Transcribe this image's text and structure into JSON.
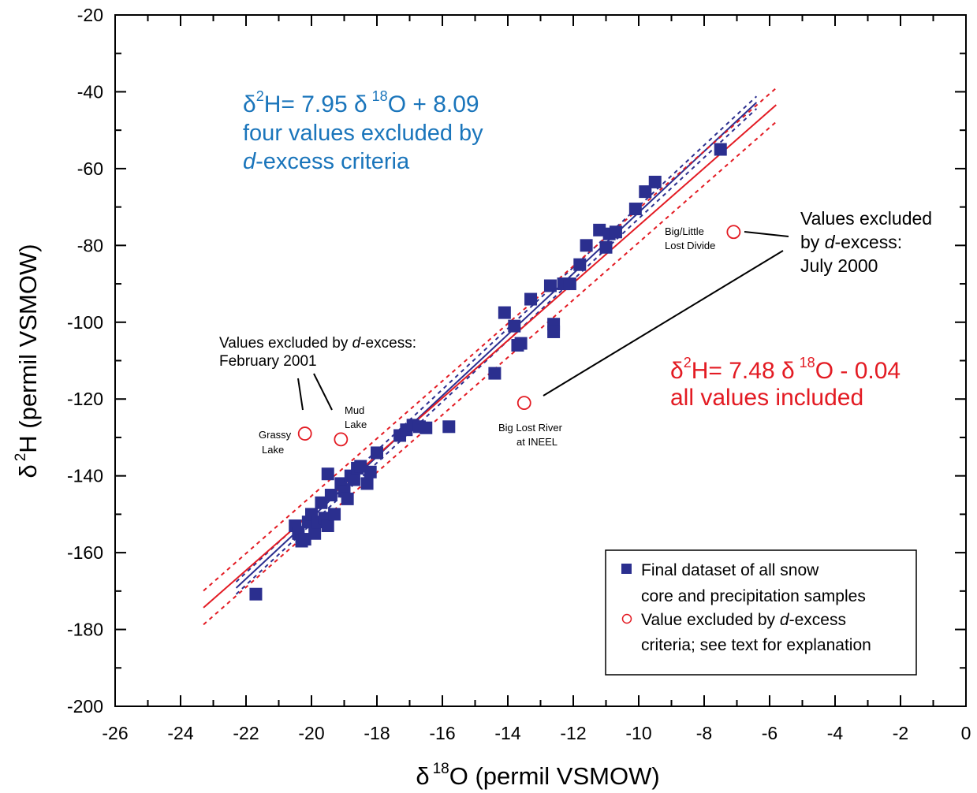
{
  "chart_data": {
    "type": "scatter",
    "xlabel": "δ 18O (permil VSMOW)",
    "ylabel": "δ 2H (permil VSMOW)",
    "axis_label_parts": {
      "x_delta": "δ",
      "x_sup": "18",
      "x_rest": "O (permil VSMOW)",
      "y_delta": "δ",
      "y_sup": "2",
      "y_rest": "H (permil VSMOW)"
    },
    "xlim": [
      -26,
      0
    ],
    "ylim": [
      -200,
      -20
    ],
    "x_ticks": [
      "-26",
      "-24",
      "-22",
      "-20",
      "-18",
      "-16",
      "-14",
      "-12",
      "-10",
      "-8",
      "-6",
      "-4",
      "-2",
      "0"
    ],
    "y_ticks": [
      "-20",
      "-40",
      "-60",
      "-80",
      "-100",
      "-120",
      "-140",
      "-160",
      "-180",
      "-200"
    ],
    "grid": false,
    "legend_position": "bottom-right",
    "colors": {
      "dataset": "#2b2f8f",
      "excluded": "#e31b23",
      "blue_text": "#1a75bb",
      "red_text": "#e31b23"
    },
    "series": [
      {
        "name": "Final dataset of all snow core and precipitation samples",
        "marker": "filled-square",
        "points": [
          [
            -21.7,
            -170.8
          ],
          [
            -20.5,
            -153
          ],
          [
            -20.4,
            -155
          ],
          [
            -20.3,
            -157
          ],
          [
            -20.2,
            -156.5
          ],
          [
            -20.1,
            -152
          ],
          [
            -20.0,
            -150
          ],
          [
            -19.9,
            -155
          ],
          [
            -19.8,
            -152
          ],
          [
            -19.7,
            -147
          ],
          [
            -19.6,
            -151
          ],
          [
            -19.5,
            -153
          ],
          [
            -19.4,
            -145
          ],
          [
            -19.3,
            -150
          ],
          [
            -19.5,
            -139.5
          ],
          [
            -19.1,
            -142
          ],
          [
            -19.0,
            -144
          ],
          [
            -18.9,
            -146
          ],
          [
            -18.8,
            -140
          ],
          [
            -18.7,
            -141
          ],
          [
            -18.6,
            -138
          ],
          [
            -18.5,
            -137.5
          ],
          [
            -18.3,
            -142
          ],
          [
            -18.2,
            -139
          ],
          [
            -18.0,
            -134
          ],
          [
            -17.3,
            -129.5
          ],
          [
            -17.1,
            -128
          ],
          [
            -16.9,
            -126.8
          ],
          [
            -16.7,
            -127.2
          ],
          [
            -16.5,
            -127.5
          ],
          [
            -15.8,
            -127.2
          ],
          [
            -14.4,
            -113.3
          ],
          [
            -14.1,
            -97.5
          ],
          [
            -13.8,
            -101
          ],
          [
            -13.7,
            -106
          ],
          [
            -13.6,
            -105.5
          ],
          [
            -13.3,
            -94
          ],
          [
            -12.7,
            -90.5
          ],
          [
            -12.6,
            -100.5
          ],
          [
            -12.6,
            -102.5
          ],
          [
            -12.3,
            -90
          ],
          [
            -12.1,
            -90
          ],
          [
            -11.8,
            -85
          ],
          [
            -11.6,
            -80
          ],
          [
            -11.2,
            -76
          ],
          [
            -11.0,
            -80.5
          ],
          [
            -10.9,
            -77
          ],
          [
            -10.7,
            -76.5
          ],
          [
            -10.1,
            -70.5
          ],
          [
            -9.8,
            -66
          ],
          [
            -9.5,
            -63.5
          ],
          [
            -7.5,
            -55
          ]
        ]
      },
      {
        "name": "Value excluded by d-excess criteria; see text for explanation",
        "marker": "open-circle",
        "points": [
          [
            -20.2,
            -129
          ],
          [
            -19.1,
            -130.5
          ],
          [
            -13.5,
            -121
          ],
          [
            -7.1,
            -76.5
          ]
        ]
      }
    ],
    "fits": [
      {
        "label": "blue",
        "slope": 7.95,
        "intercept": 8.09,
        "x_range": [
          -22.3,
          -6.4
        ],
        "band": 1.6
      },
      {
        "label": "red",
        "slope": 7.48,
        "intercept": -0.04,
        "x_range": [
          -23.3,
          -5.8
        ],
        "band": 4.4
      }
    ],
    "annotations": {
      "blue_eq_d": "δ",
      "blue_eq_sup1": "2",
      "blue_eq_mid": "H= 7.95 ",
      "blue_eq_d2": "δ",
      "blue_eq_sup2": "18",
      "blue_eq_end": "O + 8.09",
      "blue_line2": "four values excluded by",
      "blue_line3_italic": "d",
      "blue_line3_rest": "-excess criteria",
      "red_eq_d": "δ",
      "red_eq_sup1": "2",
      "red_eq_mid": "H= 7.48 ",
      "red_eq_d2": "δ",
      "red_eq_sup2": "18",
      "red_eq_end": "O - 0.04",
      "red_line2": "all values included",
      "feb_line1_pre": "Values excluded by ",
      "feb_line1_italic": "d",
      "feb_line1_post": "-excess:",
      "feb_line2": "February 2001",
      "grassy_1": "Grassy",
      "grassy_2": "Lake",
      "mud_1": "Mud",
      "mud_2": "Lake",
      "biglost_1": "Big Lost River",
      "biglost_2": "at INEEL",
      "biglittle_1": "Big/Little",
      "biglittle_2": "Lost Divide",
      "july_1": "Values excluded",
      "july_2_pre": "by ",
      "july_2_italic": "d",
      "july_2_post": "-excess:",
      "july_3": "July 2000"
    },
    "legend": {
      "item1_line1": "Final dataset of all snow",
      "item1_line2": "core and precipitation samples",
      "item2_line1_pre": "Value excluded by ",
      "item2_line1_italic": "d",
      "item2_line1_post": "-excess",
      "item2_line2": "criteria; see text for explanation"
    }
  }
}
